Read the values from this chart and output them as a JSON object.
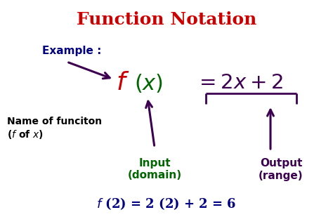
{
  "title": "Function Notation",
  "title_color": "#cc0000",
  "bg_color": "#ffffff",
  "example_label": "Example :",
  "example_color": "#000080",
  "name_label_line1": "Name of funciton",
  "name_label_line2": "(f of x)",
  "name_label_color": "#000000",
  "input_label_line1": "Input",
  "input_label_line2": "(domain)",
  "input_label_color": "#006600",
  "output_label_line1": "Output",
  "output_label_line2": "(range)",
  "output_label_color": "#3d0050",
  "bottom_eq_color": "#000080",
  "arrow_color": "#3d0050",
  "bracket_color": "#3d0050",
  "f_color": "#cc0000",
  "x_color": "#006600",
  "eq_color": "#3d0050"
}
